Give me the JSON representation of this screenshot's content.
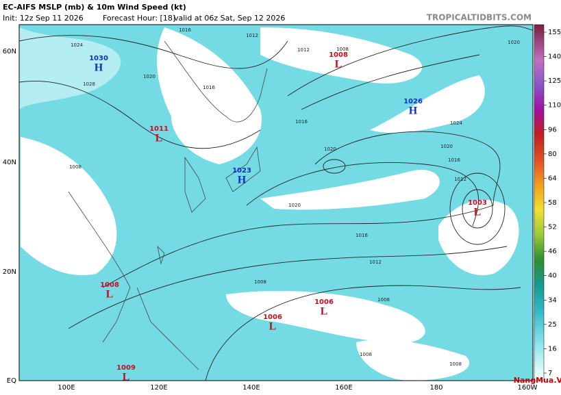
{
  "header": {
    "title": "EC-AIFS MSLP (mb) & 10m Wind Speed (kt)",
    "init": "Init: 12z Sep 11 2026",
    "forecast_hour": "Forecast Hour: [18]",
    "valid": "valid at 06z Sat, Sep 12 2026",
    "site": "TROPICALTIDBITS.COM"
  },
  "map": {
    "lat_labels": [
      "60N",
      "40N",
      "20N",
      "EQ"
    ],
    "lon_labels": [
      "100E",
      "120E",
      "140E",
      "160E",
      "180",
      "160W"
    ],
    "centers": [
      {
        "value": "1030",
        "letter": "H"
      },
      {
        "value": "1011",
        "letter": "L"
      },
      {
        "value": "1023",
        "letter": "H"
      },
      {
        "value": "1008",
        "letter": "L"
      },
      {
        "value": "1026",
        "letter": "H"
      },
      {
        "value": "1003",
        "letter": "L"
      },
      {
        "value": "1008",
        "letter": "L"
      },
      {
        "value": "1006",
        "letter": "L"
      },
      {
        "value": "1006",
        "letter": "L"
      },
      {
        "value": "1009",
        "letter": "L"
      }
    ],
    "isobar_labels": [
      "1016",
      "1012",
      "1024",
      "1028",
      "1020",
      "1016",
      "1012",
      "1008",
      "1016",
      "1020",
      "1020",
      "1016",
      "1012",
      "1008",
      "1008",
      "1008",
      "1020",
      "1024",
      "1016",
      "1012",
      "1008",
      "1008",
      "1020"
    ]
  },
  "colorbar": {
    "ticks": [
      "155",
      "140",
      "125",
      "110",
      "96",
      "80",
      "64",
      "58",
      "52",
      "46",
      "40",
      "34",
      "25",
      "16",
      "7"
    ]
  },
  "watermark": "NangMua.VN"
}
